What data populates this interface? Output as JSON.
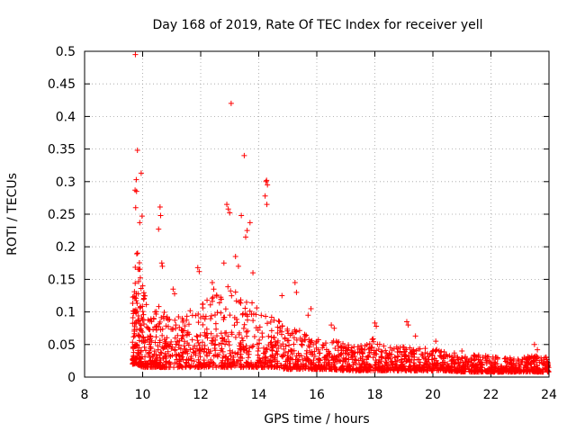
{
  "chart_data": {
    "type": "scatter",
    "title": "Day 168 of 2019, Rate Of TEC Index for receiver yell",
    "xlabel": "GPS time / hours",
    "ylabel": "ROTI / TECUs",
    "xlim": [
      8,
      24
    ],
    "ylim": [
      0,
      0.5
    ],
    "xticks": [
      8,
      10,
      12,
      14,
      16,
      18,
      20,
      22,
      24
    ],
    "yticks": [
      0,
      0.05,
      0.1,
      0.15,
      0.2,
      0.25,
      0.3,
      0.35,
      0.4,
      0.45,
      0.5
    ],
    "xtick_labels": [
      "8",
      "10",
      "12",
      "14",
      "16",
      "18",
      "20",
      "22",
      "24"
    ],
    "ytick_labels": [
      "0",
      "0.05",
      "0.1",
      "0.15",
      "0.2",
      "0.25",
      "0.3",
      "0.35",
      "0.4",
      "0.45",
      "0.5"
    ],
    "grid": true,
    "marker": "+",
    "color": "#ff0000",
    "series": [
      {
        "name": "ROTI",
        "points": [
          [
            9.75,
            0.495
          ],
          [
            9.82,
            0.348
          ],
          [
            9.95,
            0.313
          ],
          [
            9.78,
            0.303
          ],
          [
            9.74,
            0.287
          ],
          [
            9.79,
            0.285
          ],
          [
            10.6,
            0.261
          ],
          [
            9.76,
            0.26
          ],
          [
            10.62,
            0.248
          ],
          [
            9.98,
            0.247
          ],
          [
            10.55,
            0.227
          ],
          [
            9.9,
            0.237
          ],
          [
            10.66,
            0.175
          ],
          [
            10.68,
            0.17
          ],
          [
            11.05,
            0.135
          ],
          [
            11.1,
            0.128
          ],
          [
            11.9,
            0.168
          ],
          [
            11.95,
            0.162
          ],
          [
            12.4,
            0.145
          ],
          [
            12.45,
            0.135
          ],
          [
            13.05,
            0.42
          ],
          [
            13.5,
            0.34
          ],
          [
            12.9,
            0.265
          ],
          [
            12.95,
            0.258
          ],
          [
            13.0,
            0.252
          ],
          [
            13.4,
            0.248
          ],
          [
            13.7,
            0.237
          ],
          [
            13.6,
            0.225
          ],
          [
            13.55,
            0.215
          ],
          [
            13.2,
            0.185
          ],
          [
            12.8,
            0.175
          ],
          [
            13.3,
            0.17
          ],
          [
            13.8,
            0.16
          ],
          [
            14.25,
            0.3
          ],
          [
            14.3,
            0.295
          ],
          [
            14.22,
            0.278
          ],
          [
            14.28,
            0.265
          ],
          [
            14.27,
            0.302
          ],
          [
            14.8,
            0.125
          ],
          [
            15.25,
            0.145
          ],
          [
            15.3,
            0.13
          ],
          [
            15.8,
            0.105
          ],
          [
            15.7,
            0.095
          ],
          [
            16.5,
            0.08
          ],
          [
            16.6,
            0.075
          ],
          [
            18.0,
            0.083
          ],
          [
            18.05,
            0.078
          ],
          [
            19.1,
            0.085
          ],
          [
            19.15,
            0.08
          ],
          [
            19.4,
            0.063
          ],
          [
            20.1,
            0.055
          ],
          [
            21.0,
            0.04
          ],
          [
            23.5,
            0.05
          ],
          [
            23.6,
            0.042
          ],
          [
            23.9,
            0.03
          ]
        ],
        "envelope": [
          [
            9.65,
            0.02,
            0.12
          ],
          [
            9.8,
            0.02,
            0.2
          ],
          [
            10.0,
            0.015,
            0.15
          ],
          [
            10.3,
            0.015,
            0.1
          ],
          [
            10.6,
            0.015,
            0.11
          ],
          [
            11.0,
            0.015,
            0.09
          ],
          [
            11.5,
            0.015,
            0.1
          ],
          [
            12.0,
            0.015,
            0.12
          ],
          [
            12.5,
            0.015,
            0.13
          ],
          [
            13.0,
            0.015,
            0.14
          ],
          [
            13.5,
            0.015,
            0.13
          ],
          [
            14.0,
            0.015,
            0.11
          ],
          [
            14.5,
            0.015,
            0.09
          ],
          [
            15.0,
            0.012,
            0.08
          ],
          [
            15.5,
            0.012,
            0.07
          ],
          [
            16.0,
            0.012,
            0.06
          ],
          [
            16.5,
            0.012,
            0.06
          ],
          [
            17.0,
            0.01,
            0.05
          ],
          [
            17.5,
            0.01,
            0.05
          ],
          [
            18.0,
            0.01,
            0.06
          ],
          [
            18.5,
            0.01,
            0.045
          ],
          [
            19.0,
            0.01,
            0.05
          ],
          [
            19.5,
            0.01,
            0.045
          ],
          [
            20.0,
            0.01,
            0.045
          ],
          [
            20.5,
            0.01,
            0.04
          ],
          [
            21.0,
            0.008,
            0.035
          ],
          [
            21.5,
            0.008,
            0.035
          ],
          [
            22.0,
            0.008,
            0.032
          ],
          [
            22.5,
            0.008,
            0.03
          ],
          [
            23.0,
            0.008,
            0.03
          ],
          [
            23.5,
            0.008,
            0.035
          ],
          [
            24.0,
            0.008,
            0.03
          ]
        ]
      }
    ]
  }
}
